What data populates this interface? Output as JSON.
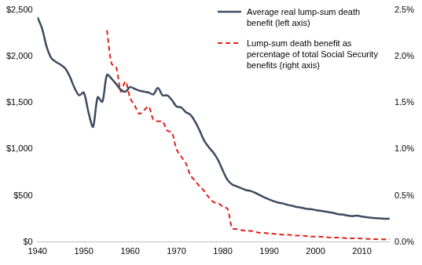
{
  "chart_data": {
    "type": "line",
    "x": [
      1940,
      1941,
      1942,
      1943,
      1944,
      1945,
      1946,
      1947,
      1948,
      1949,
      1950,
      1951,
      1952,
      1953,
      1954,
      1955,
      1956,
      1957,
      1958,
      1959,
      1960,
      1961,
      1962,
      1963,
      1964,
      1965,
      1966,
      1967,
      1968,
      1969,
      1970,
      1971,
      1972,
      1973,
      1974,
      1975,
      1976,
      1977,
      1978,
      1979,
      1980,
      1981,
      1982,
      1983,
      1984,
      1985,
      1986,
      1987,
      1988,
      1989,
      1990,
      1991,
      1992,
      1993,
      1994,
      1995,
      1996,
      1997,
      1998,
      1999,
      2000,
      2001,
      2002,
      2003,
      2004,
      2005,
      2006,
      2007,
      2008,
      2009,
      2010,
      2011,
      2012,
      2013,
      2014,
      2015,
      2016
    ],
    "series": [
      {
        "name": "Average real lump-sum death benefit (left axis)",
        "color": "#3d4b5f",
        "line_style": "solid",
        "marker": "none",
        "axis": "y",
        "values": [
          2420,
          2300,
          2100,
          1980,
          1940,
          1910,
          1870,
          1780,
          1660,
          1580,
          1610,
          1400,
          1240,
          1560,
          1510,
          1800,
          1760,
          1700,
          1640,
          1620,
          1670,
          1650,
          1630,
          1620,
          1610,
          1590,
          1660,
          1580,
          1580,
          1530,
          1460,
          1450,
          1400,
          1370,
          1300,
          1200,
          1090,
          1020,
          960,
          880,
          770,
          670,
          620,
          600,
          580,
          560,
          550,
          530,
          505,
          480,
          460,
          440,
          425,
          415,
          400,
          390,
          378,
          370,
          360,
          355,
          345,
          338,
          330,
          322,
          312,
          300,
          295,
          285,
          280,
          285,
          275,
          268,
          262,
          258,
          255,
          252,
          252
        ]
      },
      {
        "name": "Lump-sum death benefit as percentage of total Social Security benefits (right axis)",
        "color": "#e0201b",
        "line_style": "dashed",
        "marker": "none",
        "axis": "y2",
        "values": [
          null,
          null,
          null,
          null,
          null,
          null,
          null,
          null,
          null,
          null,
          null,
          null,
          null,
          null,
          null,
          2.28,
          1.92,
          1.88,
          1.62,
          1.73,
          1.55,
          1.47,
          1.38,
          1.42,
          1.46,
          1.32,
          1.3,
          1.3,
          1.2,
          1.18,
          1.0,
          0.92,
          0.85,
          0.72,
          0.66,
          0.6,
          0.55,
          0.48,
          0.43,
          0.42,
          0.38,
          0.36,
          0.15,
          0.14,
          0.13,
          0.12,
          0.12,
          0.11,
          0.1,
          0.1,
          0.09,
          0.09,
          0.085,
          0.08,
          0.08,
          0.075,
          0.07,
          0.07,
          0.065,
          0.06,
          0.06,
          0.058,
          0.055,
          0.05,
          0.05,
          0.048,
          0.045,
          0.04,
          0.04,
          0.04,
          0.038,
          0.035,
          0.033,
          0.032,
          0.03,
          0.03,
          0.03
        ]
      }
    ],
    "xlim": [
      1940,
      2016
    ],
    "xticks": [
      1940,
      1950,
      1960,
      1970,
      1980,
      1990,
      2000,
      2010
    ],
    "ylim": [
      0,
      2500
    ],
    "yticks": [
      {
        "value": 0,
        "label": "$0"
      },
      {
        "value": 500,
        "label": "$500"
      },
      {
        "value": 1000,
        "label": "$1,000"
      },
      {
        "value": 1500,
        "label": "$1,500"
      },
      {
        "value": 2000,
        "label": "$2,000"
      },
      {
        "value": 2500,
        "label": "$2,500"
      }
    ],
    "y2lim": [
      0,
      2.5
    ],
    "y2ticks": [
      {
        "value": 0,
        "label": "0.0%"
      },
      {
        "value": 0.5,
        "label": "0.5%"
      },
      {
        "value": 1,
        "label": "1.0%"
      },
      {
        "value": 1.5,
        "label": "1.5%"
      },
      {
        "value": 2,
        "label": "2.0%"
      },
      {
        "value": 2.5,
        "label": "2.5%"
      }
    ],
    "grid": false,
    "legend": "top-right"
  }
}
